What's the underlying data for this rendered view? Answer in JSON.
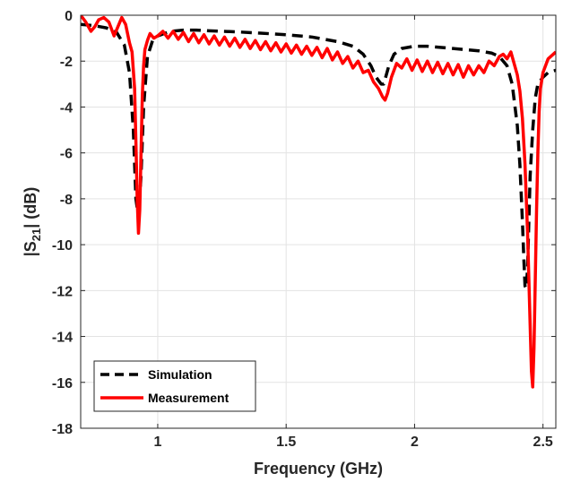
{
  "chart_data": {
    "type": "line",
    "xlabel": "Frequency (GHz)",
    "ylabel": {
      "prefix": "|S",
      "subscript": "21",
      "suffix": "| (dB)"
    },
    "xlim": [
      0.7,
      2.55
    ],
    "ylim": [
      -18,
      0
    ],
    "xticks": [
      1,
      1.5,
      2,
      2.5
    ],
    "yticks": [
      -18,
      -16,
      -14,
      -12,
      -10,
      -8,
      -6,
      -4,
      -2,
      0
    ],
    "xtick_labels": [
      "1",
      "1.5",
      "2",
      "2.5"
    ],
    "ytick_labels": [
      "-18",
      "-16",
      "-14",
      "-12",
      "-10",
      "-8",
      "-6",
      "-4",
      "-2",
      "0"
    ],
    "grid": true,
    "legend_position": "bottom-left",
    "series": [
      {
        "name": "Simulation",
        "color": "#000000",
        "style": "dashed",
        "x": [
          0.7,
          0.75,
          0.8,
          0.84,
          0.87,
          0.89,
          0.905,
          0.915,
          0.925,
          0.935,
          0.945,
          0.96,
          0.98,
          1.0,
          1.05,
          1.1,
          1.15,
          1.2,
          1.3,
          1.4,
          1.5,
          1.6,
          1.7,
          1.76,
          1.8,
          1.83,
          1.85,
          1.87,
          1.88,
          1.9,
          1.92,
          1.95,
          2.0,
          2.05,
          2.1,
          2.15,
          2.2,
          2.25,
          2.3,
          2.33,
          2.36,
          2.38,
          2.4,
          2.41,
          2.42,
          2.425,
          2.43,
          2.435,
          2.44,
          2.445,
          2.45,
          2.46,
          2.47,
          2.48,
          2.5,
          2.52,
          2.55
        ],
        "y": [
          -0.4,
          -0.45,
          -0.55,
          -0.75,
          -1.3,
          -2.5,
          -5.0,
          -8.0,
          -8.8,
          -7.0,
          -4.0,
          -1.8,
          -1.1,
          -0.9,
          -0.7,
          -0.65,
          -0.65,
          -0.68,
          -0.72,
          -0.78,
          -0.85,
          -0.95,
          -1.15,
          -1.35,
          -1.7,
          -2.2,
          -2.7,
          -3.0,
          -3.0,
          -2.2,
          -1.7,
          -1.45,
          -1.35,
          -1.35,
          -1.4,
          -1.45,
          -1.5,
          -1.55,
          -1.65,
          -1.8,
          -2.2,
          -3.0,
          -4.8,
          -6.5,
          -9.0,
          -10.5,
          -11.8,
          -11.9,
          -11.0,
          -9.0,
          -7.0,
          -5.0,
          -3.6,
          -3.0,
          -2.7,
          -2.5,
          -2.4
        ]
      },
      {
        "name": "Measurement",
        "color": "#ff0000",
        "style": "solid",
        "x": [
          0.7,
          0.72,
          0.74,
          0.755,
          0.77,
          0.79,
          0.81,
          0.83,
          0.845,
          0.86,
          0.875,
          0.89,
          0.9,
          0.91,
          0.915,
          0.92,
          0.925,
          0.93,
          0.935,
          0.94,
          0.945,
          0.95,
          0.96,
          0.97,
          0.985,
          1.0,
          1.02,
          1.04,
          1.06,
          1.08,
          1.1,
          1.12,
          1.14,
          1.16,
          1.18,
          1.2,
          1.22,
          1.24,
          1.26,
          1.28,
          1.3,
          1.32,
          1.34,
          1.36,
          1.38,
          1.4,
          1.42,
          1.44,
          1.46,
          1.48,
          1.5,
          1.52,
          1.54,
          1.56,
          1.58,
          1.6,
          1.62,
          1.64,
          1.66,
          1.68,
          1.7,
          1.72,
          1.74,
          1.76,
          1.78,
          1.8,
          1.82,
          1.84,
          1.86,
          1.875,
          1.885,
          1.895,
          1.91,
          1.93,
          1.95,
          1.97,
          1.99,
          2.01,
          2.03,
          2.05,
          2.07,
          2.09,
          2.11,
          2.13,
          2.15,
          2.17,
          2.19,
          2.21,
          2.23,
          2.25,
          2.27,
          2.29,
          2.31,
          2.33,
          2.345,
          2.36,
          2.375,
          2.39,
          2.4,
          2.41,
          2.42,
          2.43,
          2.44,
          2.45,
          2.455,
          2.46,
          2.465,
          2.47,
          2.475,
          2.48,
          2.485,
          2.49,
          2.5,
          2.52,
          2.55
        ],
        "y": [
          0.0,
          -0.3,
          -0.7,
          -0.5,
          -0.2,
          -0.1,
          -0.3,
          -0.9,
          -0.5,
          -0.1,
          -0.4,
          -1.2,
          -1.6,
          -3.2,
          -5.5,
          -8.0,
          -9.5,
          -8.5,
          -6.0,
          -3.5,
          -2.2,
          -1.5,
          -1.1,
          -0.8,
          -1.0,
          -0.9,
          -0.7,
          -1.0,
          -0.7,
          -1.05,
          -0.75,
          -1.15,
          -0.8,
          -1.2,
          -0.85,
          -1.25,
          -0.9,
          -1.3,
          -0.95,
          -1.35,
          -1.0,
          -1.4,
          -1.05,
          -1.45,
          -1.1,
          -1.5,
          -1.15,
          -1.55,
          -1.2,
          -1.6,
          -1.25,
          -1.65,
          -1.3,
          -1.7,
          -1.35,
          -1.75,
          -1.4,
          -1.85,
          -1.45,
          -1.95,
          -1.6,
          -2.1,
          -1.8,
          -2.3,
          -2.0,
          -2.5,
          -2.4,
          -2.9,
          -3.2,
          -3.55,
          -3.7,
          -3.4,
          -2.7,
          -2.1,
          -2.3,
          -1.9,
          -2.4,
          -1.95,
          -2.45,
          -2.0,
          -2.5,
          -2.05,
          -2.55,
          -2.1,
          -2.6,
          -2.15,
          -2.7,
          -2.2,
          -2.6,
          -2.2,
          -2.5,
          -2.0,
          -2.2,
          -1.8,
          -1.7,
          -1.9,
          -1.6,
          -2.2,
          -2.6,
          -3.3,
          -4.5,
          -6.5,
          -9.5,
          -13.5,
          -15.5,
          -16.2,
          -14.5,
          -11.5,
          -8.5,
          -6.0,
          -4.2,
          -3.2,
          -2.5,
          -1.9,
          -1.6
        ]
      }
    ]
  }
}
